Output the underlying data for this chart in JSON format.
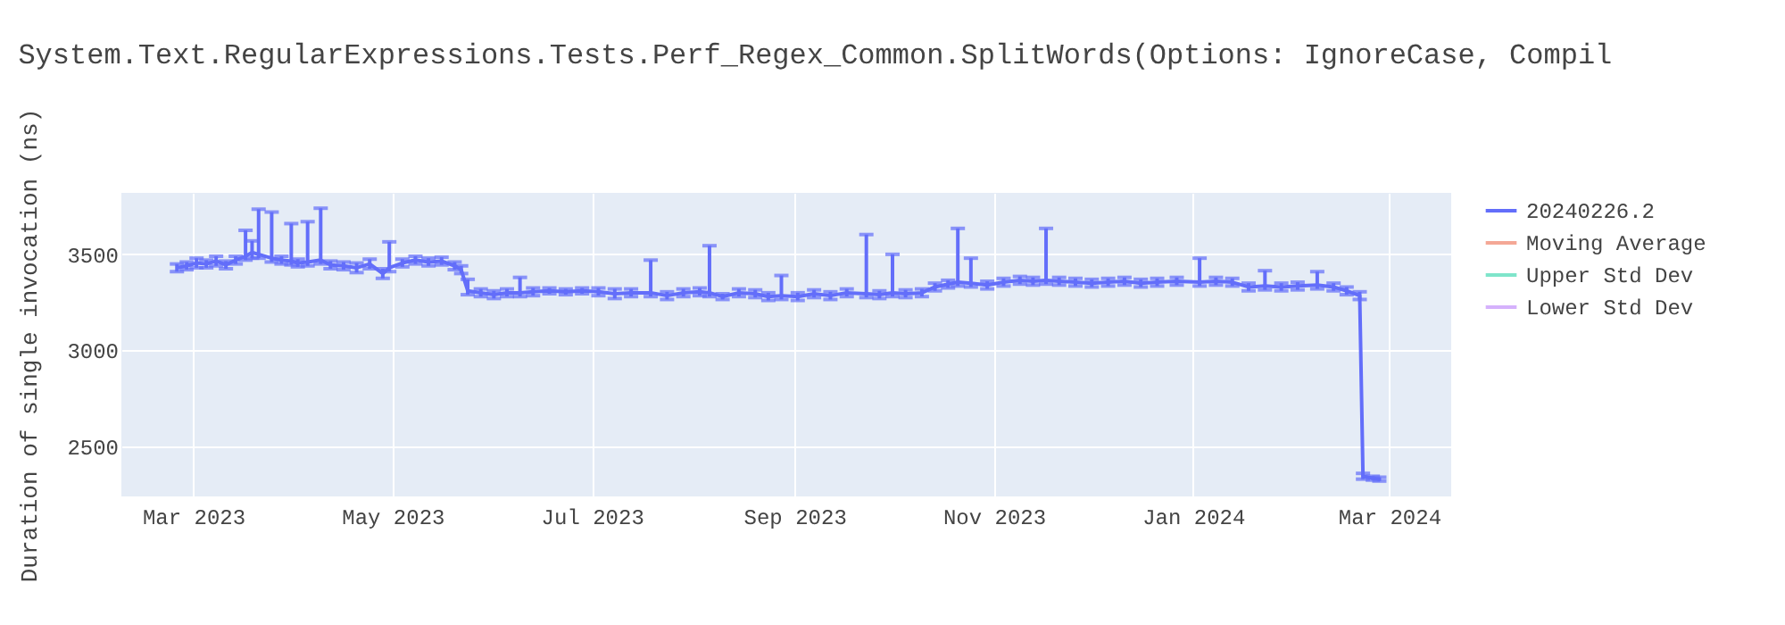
{
  "chart_data": {
    "type": "line",
    "title": "System.Text.RegularExpressions.Tests.Perf_Regex_Common.SplitWords(Options: IgnoreCase, Compil",
    "ylabel": "Duration of single invocation (ns)",
    "xlim": [
      "2023-02-07",
      "2024-03-20"
    ],
    "xticks": [
      {
        "value": "2023-03-01",
        "label": "Mar 2023"
      },
      {
        "value": "2023-05-01",
        "label": "May 2023"
      },
      {
        "value": "2023-07-01",
        "label": "Jul 2023"
      },
      {
        "value": "2023-09-01",
        "label": "Sep 2023"
      },
      {
        "value": "2023-11-01",
        "label": "Nov 2023"
      },
      {
        "value": "2024-01-01",
        "label": "Jan 2024"
      },
      {
        "value": "2024-03-01",
        "label": "Mar 2024"
      }
    ],
    "ylim": [
      2240,
      3820
    ],
    "yticks": [
      2500,
      3000,
      3500
    ],
    "grid": true,
    "legend": "right",
    "marker": "none",
    "line_style": "solid",
    "series": [
      {
        "name": "20240226.2",
        "color": "#636efa",
        "x": [
          "2023-02-24",
          "2023-02-27",
          "2023-03-02",
          "2023-03-05",
          "2023-03-08",
          "2023-03-11",
          "2023-03-14",
          "2023-03-17",
          "2023-03-19",
          "2023-03-21",
          "2023-03-25",
          "2023-03-28",
          "2023-03-31",
          "2023-04-02",
          "2023-04-05",
          "2023-04-09",
          "2023-04-12",
          "2023-04-16",
          "2023-04-20",
          "2023-04-24",
          "2023-04-28",
          "2023-04-30",
          "2023-05-04",
          "2023-05-08",
          "2023-05-12",
          "2023-05-16",
          "2023-05-20",
          "2023-05-22",
          "2023-05-24",
          "2023-05-28",
          "2023-06-01",
          "2023-06-05",
          "2023-06-09",
          "2023-06-13",
          "2023-06-18",
          "2023-06-23",
          "2023-06-28",
          "2023-07-03",
          "2023-07-08",
          "2023-07-13",
          "2023-07-19",
          "2023-07-24",
          "2023-07-29",
          "2023-08-03",
          "2023-08-06",
          "2023-08-10",
          "2023-08-15",
          "2023-08-20",
          "2023-08-24",
          "2023-08-28",
          "2023-09-02",
          "2023-09-07",
          "2023-09-12",
          "2023-09-17",
          "2023-09-23",
          "2023-09-27",
          "2023-10-01",
          "2023-10-05",
          "2023-10-10",
          "2023-10-14",
          "2023-10-18",
          "2023-10-21",
          "2023-10-25",
          "2023-10-30",
          "2023-11-04",
          "2023-11-09",
          "2023-11-13",
          "2023-11-17",
          "2023-11-21",
          "2023-11-26",
          "2023-12-01",
          "2023-12-06",
          "2023-12-11",
          "2023-12-16",
          "2023-12-21",
          "2023-12-27",
          "2024-01-03",
          "2024-01-08",
          "2024-01-13",
          "2024-01-18",
          "2024-01-23",
          "2024-01-28",
          "2024-02-02",
          "2024-02-08",
          "2024-02-13",
          "2024-02-17",
          "2024-02-21",
          "2024-02-22",
          "2024-02-25",
          "2024-02-27"
        ],
        "values": [
          3430,
          3440,
          3455,
          3450,
          3465,
          3445,
          3470,
          3490,
          3510,
          3500,
          3480,
          3470,
          3465,
          3455,
          3460,
          3470,
          3445,
          3440,
          3430,
          3450,
          3400,
          3430,
          3455,
          3470,
          3460,
          3465,
          3440,
          3420,
          3310,
          3300,
          3290,
          3300,
          3300,
          3305,
          3310,
          3305,
          3310,
          3305,
          3295,
          3300,
          3300,
          3285,
          3300,
          3305,
          3300,
          3280,
          3300,
          3295,
          3280,
          3285,
          3280,
          3295,
          3285,
          3300,
          3295,
          3290,
          3300,
          3295,
          3300,
          3330,
          3345,
          3355,
          3350,
          3340,
          3355,
          3365,
          3360,
          3365,
          3360,
          3355,
          3350,
          3355,
          3360,
          3350,
          3355,
          3360,
          3355,
          3360,
          3355,
          3330,
          3335,
          3330,
          3335,
          3340,
          3330,
          3310,
          3285,
          2345,
          2335,
          2330
        ],
        "errors": [
          20,
          20,
          25,
          20,
          25,
          20,
          20,
          [
            3470,
            3625
          ],
          [
            3480,
            3570
          ],
          [
            3480,
            3735
          ],
          [
            3460,
            3720
          ],
          20,
          [
            3445,
            3660
          ],
          20,
          [
            3440,
            3670
          ],
          [
            3450,
            3740
          ],
          20,
          20,
          25,
          25,
          25,
          [
            3410,
            3565
          ],
          20,
          20,
          20,
          20,
          20,
          20,
          [
            3290,
            3370
          ],
          20,
          20,
          20,
          [
            3280,
            3380
          ],
          20,
          15,
          15,
          15,
          20,
          25,
          20,
          [
            3280,
            3470
          ],
          20,
          20,
          20,
          [
            3280,
            3545
          ],
          15,
          20,
          20,
          20,
          [
            3265,
            3390
          ],
          20,
          20,
          20,
          20,
          [
            3275,
            3603
          ],
          20,
          [
            3280,
            3500
          ],
          20,
          20,
          20,
          20,
          [
            3335,
            3635
          ],
          [
            3330,
            3480
          ],
          20,
          20,
          20,
          20,
          [
            3345,
            3635
          ],
          20,
          20,
          20,
          20,
          20,
          20,
          20,
          20,
          [
            3335,
            3480
          ],
          20,
          20,
          20,
          [
            3315,
            3415
          ],
          20,
          20,
          [
            3320,
            3410
          ],
          20,
          20,
          20,
          15,
          10,
          10
        ]
      },
      {
        "name": "Moving Average",
        "color": "#f4a896"
      },
      {
        "name": "Upper Std Dev",
        "color": "#7fe5ca"
      },
      {
        "name": "Lower Std Dev",
        "color": "#d5b1fc"
      }
    ]
  }
}
